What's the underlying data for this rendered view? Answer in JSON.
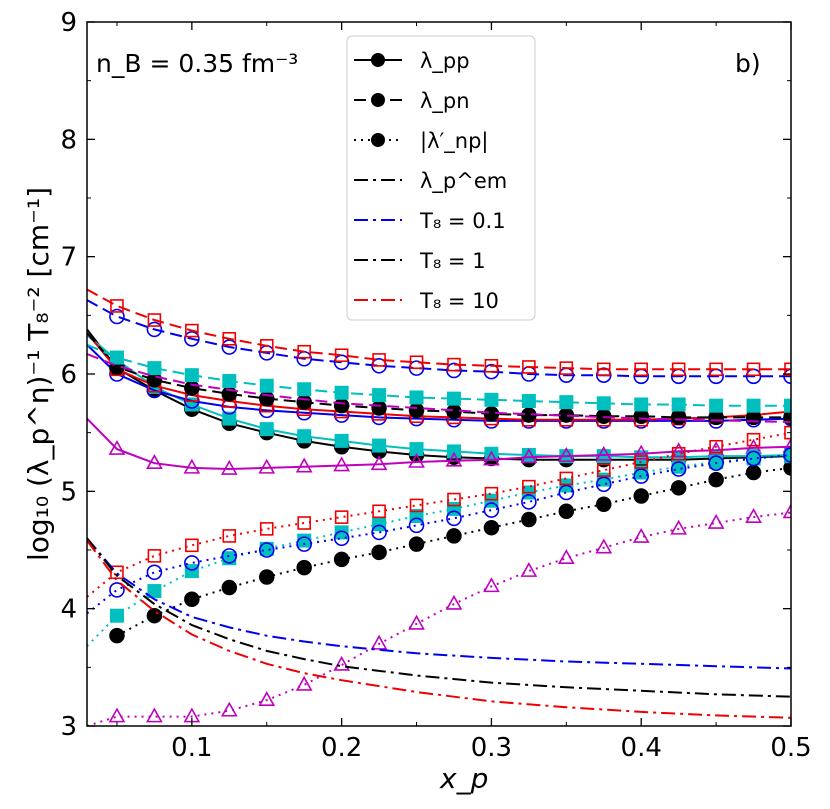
{
  "chart_data": {
    "type": "line",
    "annotation_density": "n_B = 0.35 fm⁻³",
    "panel_label": "b)",
    "xlabel": "x_p",
    "ylabel": "log₁₀ (λ_p^η)⁻¹ T₈⁻²  [cm⁻¹]",
    "xlim": [
      0.03,
      0.5
    ],
    "ylim": [
      3,
      9
    ],
    "xticks": [
      "0.1",
      "0.2",
      "0.3",
      "0.4",
      "0.5"
    ],
    "yticks": [
      "3",
      "4",
      "5",
      "6",
      "7",
      "8",
      "9"
    ],
    "legend": [
      {
        "label": "λ_pp",
        "style": "solid",
        "color": "#000000",
        "marker": "circle"
      },
      {
        "label": "λ_pn",
        "style": "dashed",
        "color": "#000000",
        "marker": "circle"
      },
      {
        "label": "|λ′_np|",
        "style": "dotted",
        "color": "#000000",
        "marker": "circle"
      },
      {
        "label": "λ_p^em",
        "style": "dashdot",
        "color": "#000000",
        "marker": "none"
      },
      {
        "label": "T₈ = 0.1",
        "style": "dashdot",
        "color": "#0000ee",
        "marker": "none"
      },
      {
        "label": "T₈ = 1",
        "style": "dashdot",
        "color": "#000000",
        "marker": "none"
      },
      {
        "label": "T₈ = 10",
        "style": "dashdot",
        "color": "#ee0000",
        "marker": "none"
      }
    ],
    "marker_x": [
      0.05,
      0.075,
      0.1,
      0.125,
      0.15,
      0.175,
      0.2,
      0.225,
      0.25,
      0.275,
      0.3,
      0.325,
      0.35,
      0.375,
      0.4,
      0.425,
      0.45,
      0.475,
      0.5
    ],
    "series": [
      {
        "name": "λ_pp black",
        "style": "solid",
        "color": "#000000",
        "marker": "filled-circle",
        "x": [
          0.03,
          0.05,
          0.075,
          0.1,
          0.125,
          0.15,
          0.175,
          0.2,
          0.225,
          0.25,
          0.275,
          0.3,
          0.325,
          0.35,
          0.375,
          0.4,
          0.425,
          0.45,
          0.475,
          0.5
        ],
        "values": [
          6.38,
          6.05,
          5.86,
          5.7,
          5.58,
          5.5,
          5.43,
          5.38,
          5.34,
          5.31,
          5.29,
          5.28,
          5.27,
          5.27,
          5.27,
          5.27,
          5.27,
          5.28,
          5.29,
          5.3
        ]
      },
      {
        "name": "λ_pp cyan",
        "style": "solid",
        "color": "#00bfbf",
        "marker": "filled-square",
        "x": [
          0.03,
          0.05,
          0.075,
          0.1,
          0.125,
          0.15,
          0.175,
          0.2,
          0.225,
          0.25,
          0.275,
          0.3,
          0.325,
          0.35,
          0.375,
          0.4,
          0.425,
          0.45,
          0.475,
          0.5
        ],
        "values": [
          6.33,
          6.12,
          5.89,
          5.74,
          5.62,
          5.53,
          5.47,
          5.43,
          5.39,
          5.36,
          5.34,
          5.32,
          5.31,
          5.3,
          5.3,
          5.29,
          5.29,
          5.3,
          5.3,
          5.31
        ]
      },
      {
        "name": "λ_pp blue",
        "style": "solid",
        "color": "#0000ee",
        "marker": "open-circle",
        "x": [
          0.03,
          0.05,
          0.075,
          0.1,
          0.125,
          0.15,
          0.175,
          0.2,
          0.225,
          0.25,
          0.275,
          0.3,
          0.325,
          0.35,
          0.375,
          0.4,
          0.425,
          0.45,
          0.475,
          0.5
        ],
        "values": [
          6.25,
          6.0,
          5.86,
          5.77,
          5.72,
          5.69,
          5.67,
          5.65,
          5.63,
          5.62,
          5.61,
          5.6,
          5.6,
          5.6,
          5.6,
          5.6,
          5.6,
          5.6,
          5.61,
          5.62
        ]
      },
      {
        "name": "λ_pp red",
        "style": "solid",
        "color": "#ee0000",
        "marker": "open-square",
        "x": [
          0.03,
          0.05,
          0.075,
          0.1,
          0.125,
          0.15,
          0.175,
          0.2,
          0.225,
          0.25,
          0.275,
          0.3,
          0.325,
          0.35,
          0.375,
          0.4,
          0.425,
          0.45,
          0.475,
          0.5
        ],
        "values": [
          6.35,
          6.04,
          5.9,
          5.82,
          5.77,
          5.73,
          5.7,
          5.68,
          5.66,
          5.64,
          5.63,
          5.62,
          5.61,
          5.61,
          5.61,
          5.61,
          5.62,
          5.63,
          5.65,
          5.68
        ]
      },
      {
        "name": "λ_pp magenta",
        "style": "solid",
        "color": "#bf00bf",
        "marker": "open-triangle",
        "x": [
          0.03,
          0.05,
          0.075,
          0.1,
          0.125,
          0.15,
          0.175,
          0.2,
          0.225,
          0.25,
          0.275,
          0.3,
          0.325,
          0.35,
          0.375,
          0.4,
          0.425,
          0.45,
          0.475,
          0.5
        ],
        "values": [
          5.62,
          5.36,
          5.24,
          5.2,
          5.19,
          5.2,
          5.21,
          5.22,
          5.23,
          5.25,
          5.26,
          5.27,
          5.29,
          5.3,
          5.31,
          5.32,
          5.34,
          5.35,
          5.37,
          5.38
        ]
      },
      {
        "name": "λ_pn black",
        "style": "dashed",
        "color": "#000000",
        "marker": "filled-circle",
        "x": [
          0.03,
          0.05,
          0.075,
          0.1,
          0.125,
          0.15,
          0.175,
          0.2,
          0.225,
          0.25,
          0.275,
          0.3,
          0.325,
          0.35,
          0.375,
          0.4,
          0.425,
          0.45,
          0.475,
          0.5
        ],
        "values": [
          6.35,
          6.06,
          5.95,
          5.88,
          5.83,
          5.79,
          5.76,
          5.73,
          5.71,
          5.69,
          5.68,
          5.66,
          5.65,
          5.65,
          5.64,
          5.64,
          5.63,
          5.63,
          5.63,
          5.63
        ]
      },
      {
        "name": "λ_pn cyan",
        "style": "dashed",
        "color": "#00bfbf",
        "marker": "filled-square",
        "x": [
          0.03,
          0.05,
          0.075,
          0.1,
          0.125,
          0.15,
          0.175,
          0.2,
          0.225,
          0.25,
          0.275,
          0.3,
          0.325,
          0.35,
          0.375,
          0.4,
          0.425,
          0.45,
          0.475,
          0.5
        ],
        "values": [
          6.25,
          6.14,
          6.05,
          5.99,
          5.94,
          5.9,
          5.87,
          5.84,
          5.82,
          5.8,
          5.79,
          5.78,
          5.77,
          5.76,
          5.75,
          5.74,
          5.74,
          5.73,
          5.73,
          5.73
        ]
      },
      {
        "name": "λ_pn blue",
        "style": "dashed",
        "color": "#0000ee",
        "marker": "open-circle",
        "x": [
          0.03,
          0.05,
          0.075,
          0.1,
          0.125,
          0.15,
          0.175,
          0.2,
          0.225,
          0.25,
          0.275,
          0.3,
          0.325,
          0.35,
          0.375,
          0.4,
          0.425,
          0.45,
          0.475,
          0.5
        ],
        "values": [
          6.63,
          6.49,
          6.38,
          6.3,
          6.23,
          6.18,
          6.13,
          6.1,
          6.07,
          6.05,
          6.03,
          6.02,
          6.0,
          5.99,
          5.99,
          5.98,
          5.98,
          5.98,
          5.98,
          5.98
        ]
      },
      {
        "name": "λ_pn red",
        "style": "dashed",
        "color": "#ee0000",
        "marker": "open-square",
        "x": [
          0.03,
          0.05,
          0.075,
          0.1,
          0.125,
          0.15,
          0.175,
          0.2,
          0.225,
          0.25,
          0.275,
          0.3,
          0.325,
          0.35,
          0.375,
          0.4,
          0.425,
          0.45,
          0.475,
          0.5
        ],
        "values": [
          6.72,
          6.58,
          6.46,
          6.37,
          6.3,
          6.24,
          6.19,
          6.16,
          6.12,
          6.1,
          6.08,
          6.07,
          6.06,
          6.05,
          6.04,
          6.04,
          6.04,
          6.04,
          6.04,
          6.04
        ]
      },
      {
        "name": "λ_pn magenta",
        "style": "dashed",
        "color": "#bf00bf",
        "marker": "none",
        "x": [
          0.03,
          0.05,
          0.075,
          0.1,
          0.15,
          0.2,
          0.3,
          0.4,
          0.5
        ],
        "values": [
          6.17,
          6.07,
          5.98,
          5.91,
          5.82,
          5.75,
          5.67,
          5.62,
          5.59
        ]
      },
      {
        "name": "|λ′_np| black",
        "style": "dotted",
        "color": "#000000",
        "marker": "filled-circle",
        "x": [
          0.05,
          0.075,
          0.1,
          0.125,
          0.15,
          0.175,
          0.2,
          0.225,
          0.25,
          0.275,
          0.3,
          0.325,
          0.35,
          0.375,
          0.4,
          0.425,
          0.45,
          0.475,
          0.5
        ],
        "values": [
          3.77,
          3.94,
          4.08,
          4.18,
          4.27,
          4.35,
          4.42,
          4.48,
          4.55,
          4.62,
          4.69,
          4.76,
          4.83,
          4.89,
          4.96,
          5.03,
          5.1,
          5.16,
          5.2
        ]
      },
      {
        "name": "|λ′_np| cyan",
        "style": "dotted",
        "color": "#00bfbf",
        "marker": "filled-square",
        "x": [
          0.03,
          0.05,
          0.075,
          0.1,
          0.125,
          0.15,
          0.175,
          0.2,
          0.225,
          0.25,
          0.275,
          0.3,
          0.325,
          0.35,
          0.375,
          0.4,
          0.425,
          0.45,
          0.475,
          0.5
        ],
        "values": [
          3.68,
          3.94,
          4.15,
          4.32,
          4.43,
          4.51,
          4.58,
          4.65,
          4.72,
          4.79,
          4.85,
          4.92,
          4.99,
          5.05,
          5.1,
          5.16,
          5.21,
          5.25,
          5.28,
          5.3
        ]
      },
      {
        "name": "|λ′_np| blue",
        "style": "dotted",
        "color": "#0000ee",
        "marker": "open-circle",
        "x": [
          0.03,
          0.05,
          0.075,
          0.1,
          0.125,
          0.15,
          0.175,
          0.2,
          0.225,
          0.25,
          0.275,
          0.3,
          0.325,
          0.35,
          0.375,
          0.4,
          0.425,
          0.45,
          0.475,
          0.5
        ],
        "values": [
          3.96,
          4.16,
          4.31,
          4.39,
          4.45,
          4.5,
          4.55,
          4.6,
          4.65,
          4.71,
          4.77,
          4.84,
          4.91,
          4.99,
          5.06,
          5.13,
          5.19,
          5.24,
          5.28,
          5.31
        ]
      },
      {
        "name": "|λ′_np| red",
        "style": "dotted",
        "color": "#ee0000",
        "marker": "open-square",
        "x": [
          0.03,
          0.05,
          0.075,
          0.1,
          0.125,
          0.15,
          0.175,
          0.2,
          0.225,
          0.25,
          0.275,
          0.3,
          0.325,
          0.35,
          0.375,
          0.4,
          0.425,
          0.45,
          0.475,
          0.5
        ],
        "values": [
          4.1,
          4.31,
          4.45,
          4.54,
          4.62,
          4.68,
          4.73,
          4.78,
          4.83,
          4.88,
          4.93,
          4.98,
          5.04,
          5.11,
          5.18,
          5.25,
          5.32,
          5.38,
          5.44,
          5.5
        ]
      },
      {
        "name": "|λ′_np| magenta",
        "style": "dotted",
        "color": "#bf00bf",
        "marker": "open-triangle",
        "x": [
          0.03,
          0.05,
          0.075,
          0.1,
          0.125,
          0.15,
          0.175,
          0.2,
          0.225,
          0.25,
          0.275,
          0.3,
          0.325,
          0.35,
          0.375,
          0.4,
          0.425,
          0.45,
          0.475,
          0.5
        ],
        "values": [
          3.0,
          3.08,
          3.08,
          3.08,
          3.13,
          3.22,
          3.35,
          3.52,
          3.7,
          3.87,
          4.04,
          4.19,
          4.32,
          4.43,
          4.52,
          4.61,
          4.68,
          4.73,
          4.78,
          4.82
        ]
      },
      {
        "name": "λ_p^em T₈=0.1",
        "style": "dashdot",
        "color": "#0000ee",
        "marker": "none",
        "x": [
          0.03,
          0.05,
          0.075,
          0.1,
          0.125,
          0.15,
          0.175,
          0.2,
          0.25,
          0.3,
          0.35,
          0.4,
          0.45,
          0.5
        ],
        "values": [
          4.6,
          4.3,
          4.08,
          3.93,
          3.84,
          3.77,
          3.72,
          3.68,
          3.62,
          3.58,
          3.55,
          3.53,
          3.51,
          3.49
        ]
      },
      {
        "name": "λ_p^em T₈=1",
        "style": "dashdot",
        "color": "#000000",
        "marker": "none",
        "x": [
          0.03,
          0.05,
          0.075,
          0.1,
          0.125,
          0.15,
          0.175,
          0.2,
          0.25,
          0.3,
          0.35,
          0.4,
          0.45,
          0.5
        ],
        "values": [
          4.6,
          4.28,
          4.04,
          3.86,
          3.74,
          3.64,
          3.57,
          3.51,
          3.43,
          3.37,
          3.33,
          3.3,
          3.27,
          3.25
        ]
      },
      {
        "name": "λ_p^em T₈=10",
        "style": "dashdot",
        "color": "#ee0000",
        "marker": "none",
        "x": [
          0.03,
          0.05,
          0.075,
          0.1,
          0.125,
          0.15,
          0.175,
          0.2,
          0.25,
          0.3,
          0.35,
          0.4,
          0.45,
          0.5
        ],
        "values": [
          4.58,
          4.24,
          3.98,
          3.78,
          3.64,
          3.53,
          3.45,
          3.39,
          3.29,
          3.21,
          3.16,
          3.12,
          3.09,
          3.07
        ]
      }
    ]
  }
}
